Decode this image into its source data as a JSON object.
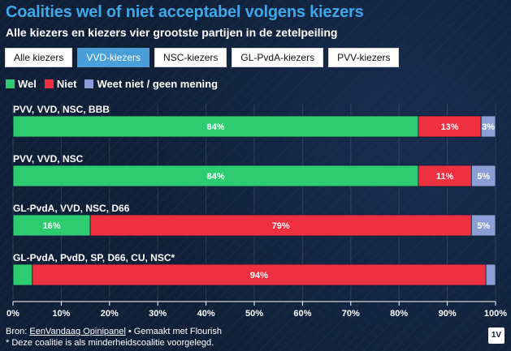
{
  "header": {
    "title": "Coalities wel of niet acceptabel volgens kiezers",
    "subtitle": "Alle kiezers en kiezers vier grootste partijen in de zetelpeiling"
  },
  "tabs": [
    {
      "label": "Alle kiezers",
      "active": false
    },
    {
      "label": "VVD-kiezers",
      "active": true
    },
    {
      "label": "NSC-kiezers",
      "active": false
    },
    {
      "label": "GL-PvdA-kiezers",
      "active": false
    },
    {
      "label": "PVV-kiezers",
      "active": false
    }
  ],
  "colors": {
    "wel": "#2ecc71",
    "niet": "#ee3040",
    "weet_niet": "#8b9fd6",
    "accent": "#3ea8e8",
    "background": "#0f1f38"
  },
  "chart_data": {
    "type": "bar",
    "orientation": "horizontal",
    "stacked": true,
    "categories": [
      "PVV, VVD, NSC, BBB",
      "PVV, VVD, NSC",
      "GL-PvdA, VVD, NSC, D66",
      "GL-PvdA, PvdD, SP, D66, CU, NSC*"
    ],
    "series": [
      {
        "name": "Wel",
        "values": [
          84,
          84,
          16,
          4
        ],
        "labels": [
          "84%",
          "84%",
          "16%",
          ""
        ]
      },
      {
        "name": "Niet",
        "values": [
          13,
          11,
          79,
          94
        ],
        "labels": [
          "13%",
          "11%",
          "79%",
          "94%"
        ]
      },
      {
        "name": "Weet niet / geen mening",
        "values": [
          3,
          5,
          5,
          2
        ],
        "labels": [
          "3%",
          "5%",
          "5%",
          ""
        ]
      }
    ],
    "xlim": [
      0,
      100
    ],
    "x_ticks": [
      "0%",
      "10%",
      "20%",
      "30%",
      "40%",
      "50%",
      "60%",
      "70%",
      "80%",
      "90%",
      "100%"
    ],
    "legend_position": "top-left",
    "grid": true
  },
  "footer": {
    "source_prefix": "Bron: ",
    "source_link": "EenVandaag Opinipanel",
    "source_suffix": " • Gemaakt met Flourish",
    "note": "* Deze coalitie is als minderheidscoalitie voorgelegd.",
    "logo": "1V"
  }
}
